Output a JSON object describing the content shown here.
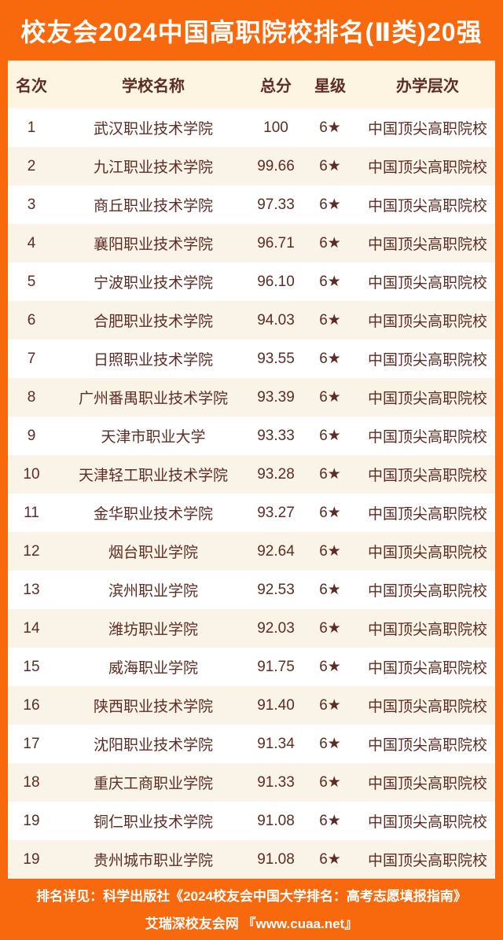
{
  "title": "校友会2024中国高职院校排名(Ⅱ类)20强",
  "table": {
    "columns": {
      "rank": "名次",
      "school": "学校名称",
      "score": "总分",
      "star": "星级",
      "level": "办学层次"
    },
    "rows": [
      {
        "rank": "1",
        "school": "武汉职业技术学院",
        "score": "100",
        "star": "6★",
        "level": "中国顶尖高职院校"
      },
      {
        "rank": "2",
        "school": "九江职业技术学院",
        "score": "99.66",
        "star": "6★",
        "level": "中国顶尖高职院校"
      },
      {
        "rank": "3",
        "school": "商丘职业技术学院",
        "score": "97.33",
        "star": "6★",
        "level": "中国顶尖高职院校"
      },
      {
        "rank": "4",
        "school": "襄阳职业技术学院",
        "score": "96.71",
        "star": "6★",
        "level": "中国顶尖高职院校"
      },
      {
        "rank": "5",
        "school": "宁波职业技术学院",
        "score": "96.10",
        "star": "6★",
        "level": "中国顶尖高职院校"
      },
      {
        "rank": "6",
        "school": "合肥职业技术学院",
        "score": "94.03",
        "star": "6★",
        "level": "中国顶尖高职院校"
      },
      {
        "rank": "7",
        "school": "日照职业技术学院",
        "score": "93.55",
        "star": "6★",
        "level": "中国顶尖高职院校"
      },
      {
        "rank": "8",
        "school": "广州番禺职业技术学院",
        "score": "93.39",
        "star": "6★",
        "level": "中国顶尖高职院校"
      },
      {
        "rank": "9",
        "school": "天津市职业大学",
        "score": "93.33",
        "star": "6★",
        "level": "中国顶尖高职院校"
      },
      {
        "rank": "10",
        "school": "天津轻工职业技术学院",
        "score": "93.28",
        "star": "6★",
        "level": "中国顶尖高职院校"
      },
      {
        "rank": "11",
        "school": "金华职业技术学院",
        "score": "93.27",
        "star": "6★",
        "level": "中国顶尖高职院校"
      },
      {
        "rank": "12",
        "school": "烟台职业学院",
        "score": "92.64",
        "star": "6★",
        "level": "中国顶尖高职院校"
      },
      {
        "rank": "13",
        "school": "滨州职业学院",
        "score": "92.53",
        "star": "6★",
        "level": "中国顶尖高职院校"
      },
      {
        "rank": "14",
        "school": "潍坊职业学院",
        "score": "92.03",
        "star": "6★",
        "level": "中国顶尖高职院校"
      },
      {
        "rank": "15",
        "school": "威海职业学院",
        "score": "91.75",
        "star": "6★",
        "level": "中国顶尖高职院校"
      },
      {
        "rank": "16",
        "school": "陕西职业技术学院",
        "score": "91.40",
        "star": "6★",
        "level": "中国顶尖高职院校"
      },
      {
        "rank": "17",
        "school": "沈阳职业技术学院",
        "score": "91.34",
        "star": "6★",
        "level": "中国顶尖高职院校"
      },
      {
        "rank": "18",
        "school": "重庆工商职业学院",
        "score": "91.33",
        "star": "6★",
        "level": "中国顶尖高职院校"
      },
      {
        "rank": "19",
        "school": "铜仁职业技术学院",
        "score": "91.08",
        "star": "6★",
        "level": "中国顶尖高职院校"
      },
      {
        "rank": "19",
        "school": "贵州城市职业学院",
        "score": "91.08",
        "star": "6★",
        "level": "中国顶尖高职院校"
      }
    ]
  },
  "footer": {
    "line1": "排名详见：科学出版社《2024校友会中国大学排名：高考志愿填报指南》",
    "line2": "艾瑞深校友会网 『www.cuaa.net』"
  },
  "colors": {
    "frame_orange": "#F7690C",
    "header_cream": "#FDF5E1",
    "even_row_beige": "#FAF4E8",
    "text_brown": "#5D2C24",
    "title_white": "#FFFFFF"
  }
}
